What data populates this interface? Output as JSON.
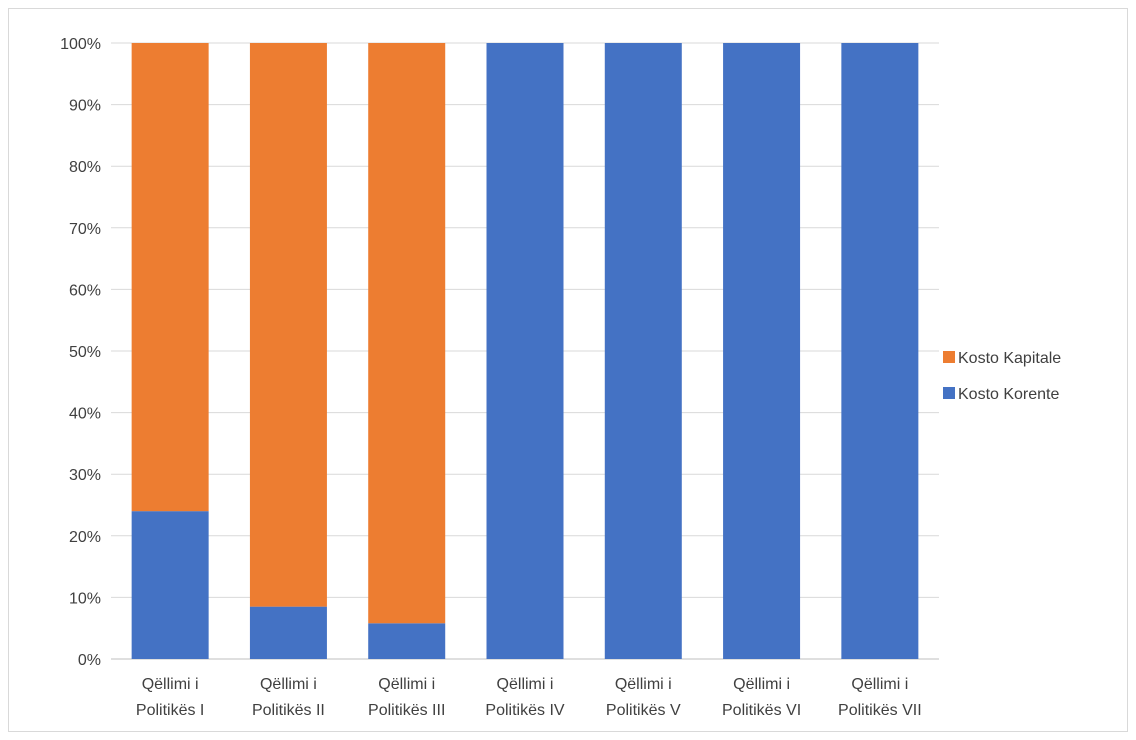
{
  "chart_data": {
    "type": "bar",
    "stacked": true,
    "percent_stacked": true,
    "categories": [
      [
        "Qëllimi i",
        "Politikës I"
      ],
      [
        "Qëllimi i",
        "Politikës II"
      ],
      [
        "Qëllimi i",
        "Politikës III"
      ],
      [
        "Qëllimi i",
        "Politikës IV"
      ],
      [
        "Qëllimi i",
        "Politikës V"
      ],
      [
        "Qëllimi i",
        "Politikës VI"
      ],
      [
        "Qëllimi i",
        "Politikës VII"
      ]
    ],
    "series": [
      {
        "name": "Kosto Korente",
        "color": "#4472C4",
        "values": [
          24,
          8.5,
          5.8,
          100,
          100,
          100,
          100
        ]
      },
      {
        "name": "Kosto Kapitale",
        "color": "#ED7D31",
        "values": [
          76,
          91.5,
          94.2,
          0,
          0,
          0,
          0
        ]
      }
    ],
    "ylim": [
      0,
      100
    ],
    "yticks": [
      "0%",
      "10%",
      "20%",
      "30%",
      "40%",
      "50%",
      "60%",
      "70%",
      "80%",
      "90%",
      "100%"
    ],
    "grid": true,
    "legend": [
      "Kosto Kapitale",
      "Kosto Korente"
    ],
    "legend_position": "right",
    "title": "",
    "xlabel": "",
    "ylabel": ""
  }
}
